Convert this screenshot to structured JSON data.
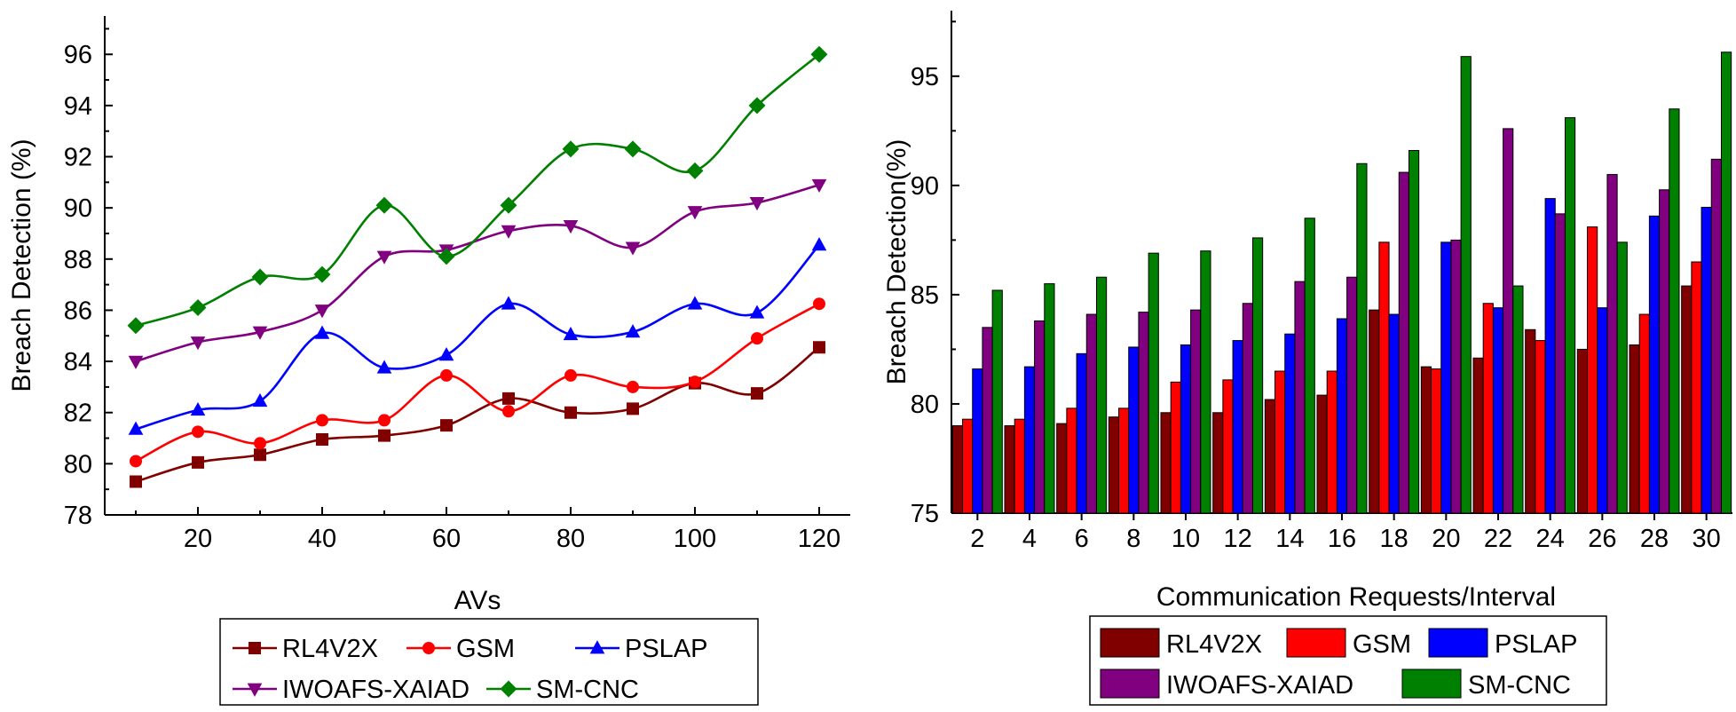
{
  "chart_data": [
    {
      "type": "line",
      "title": "",
      "xlabel": "AVs",
      "ylabel": "Breach Detection (%)",
      "x": [
        10,
        20,
        30,
        40,
        50,
        60,
        70,
        80,
        90,
        100,
        110,
        120
      ],
      "xticks": [
        20,
        40,
        60,
        80,
        100,
        120
      ],
      "xlim": [
        5,
        125
      ],
      "yticks": [
        78,
        80,
        82,
        84,
        86,
        88,
        90,
        92,
        94,
        96
      ],
      "ylim": [
        78,
        97.5
      ],
      "legend_position": "bottom",
      "series": [
        {
          "name": "RL4V2X",
          "color": "#800000",
          "marker": "square",
          "values": [
            79.3,
            80.05,
            80.35,
            80.95,
            81.1,
            81.5,
            82.55,
            82.0,
            82.15,
            83.15,
            82.75,
            84.55
          ]
        },
        {
          "name": "GSM",
          "color": "#ff0000",
          "marker": "circle",
          "values": [
            80.1,
            81.25,
            80.8,
            81.7,
            81.7,
            83.45,
            82.05,
            83.45,
            83.0,
            83.2,
            84.9,
            86.25
          ]
        },
        {
          "name": "PSLAP",
          "color": "#0000ff",
          "marker": "triangle-up",
          "values": [
            81.35,
            82.1,
            82.45,
            85.1,
            83.75,
            84.25,
            86.25,
            85.05,
            85.15,
            86.25,
            85.9,
            88.55
          ]
        },
        {
          "name": "IWOAFS-XAIAD",
          "color": "#800080",
          "marker": "triangle-down",
          "values": [
            84.0,
            84.75,
            85.15,
            86.0,
            88.1,
            88.35,
            89.1,
            89.3,
            88.45,
            89.85,
            90.2,
            90.9
          ]
        },
        {
          "name": "SM-CNC",
          "color": "#008000",
          "marker": "diamond",
          "values": [
            85.4,
            86.1,
            87.3,
            87.4,
            90.1,
            88.1,
            90.1,
            92.3,
            92.3,
            91.45,
            94.0,
            96.0
          ]
        }
      ]
    },
    {
      "type": "bar",
      "title": "",
      "xlabel": "Communication Requests/Interval",
      "ylabel": "Breach Detection(%)",
      "categories": [
        "2",
        "4",
        "6",
        "8",
        "10",
        "12",
        "14",
        "16",
        "18",
        "20",
        "22",
        "24",
        "26",
        "28",
        "30"
      ],
      "yticks": [
        75,
        80,
        85,
        90,
        95
      ],
      "ylim": [
        75,
        98
      ],
      "legend_position": "bottom",
      "series": [
        {
          "name": "RL4V2X",
          "color": "#800000",
          "values": [
            79.0,
            79.0,
            79.1,
            79.4,
            79.6,
            79.6,
            80.2,
            80.4,
            84.3,
            81.7,
            82.1,
            83.4,
            82.5,
            82.7,
            85.4
          ]
        },
        {
          "name": "GSM",
          "color": "#ff0000",
          "values": [
            79.3,
            79.3,
            79.8,
            79.8,
            81.0,
            81.1,
            81.5,
            81.5,
            87.4,
            81.6,
            84.6,
            82.9,
            88.1,
            84.1,
            86.5
          ]
        },
        {
          "name": "PSLAP",
          "color": "#0000ff",
          "values": [
            81.6,
            81.7,
            82.3,
            82.6,
            82.7,
            82.9,
            83.2,
            83.9,
            84.1,
            87.4,
            84.4,
            89.4,
            84.4,
            88.6,
            89.0
          ]
        },
        {
          "name": "IWOAFS-XAIAD",
          "color": "#800080",
          "values": [
            83.5,
            83.8,
            84.1,
            84.2,
            84.3,
            84.6,
            85.6,
            85.8,
            90.6,
            87.5,
            92.6,
            88.7,
            90.5,
            89.8,
            91.2
          ]
        },
        {
          "name": "SM-CNC",
          "color": "#008000",
          "values": [
            85.2,
            85.5,
            85.8,
            86.9,
            87.0,
            87.6,
            88.5,
            91.0,
            91.6,
            95.9,
            85.4,
            93.1,
            87.4,
            93.5,
            96.1
          ]
        }
      ]
    }
  ]
}
